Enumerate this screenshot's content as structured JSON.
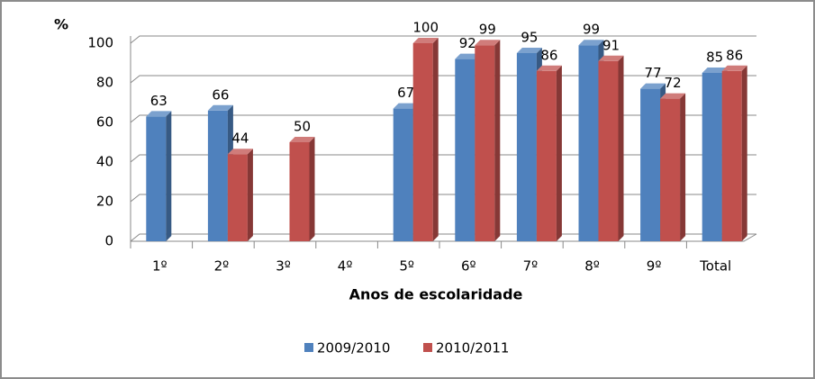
{
  "chart_data": {
    "type": "bar3d",
    "y_label": "%",
    "x_label": "Anos de escolaridade",
    "categories": [
      "1º",
      "2º",
      "3º",
      "4º",
      "5º",
      "6º",
      "7º",
      "8º",
      "9º",
      "Total"
    ],
    "series": [
      {
        "name": "2009/2010",
        "color": "#4f81bd",
        "values": [
          63,
          66,
          null,
          null,
          67,
          92,
          95,
          99,
          77,
          85
        ]
      },
      {
        "name": "2010/2011",
        "color": "#c0504d",
        "values": [
          null,
          44,
          50,
          null,
          100,
          99,
          86,
          91,
          72,
          86
        ]
      }
    ],
    "ylim": [
      0,
      100
    ],
    "yticks": [
      0,
      20,
      40,
      60,
      80,
      100
    ],
    "grid": true,
    "legend": "bottom"
  }
}
